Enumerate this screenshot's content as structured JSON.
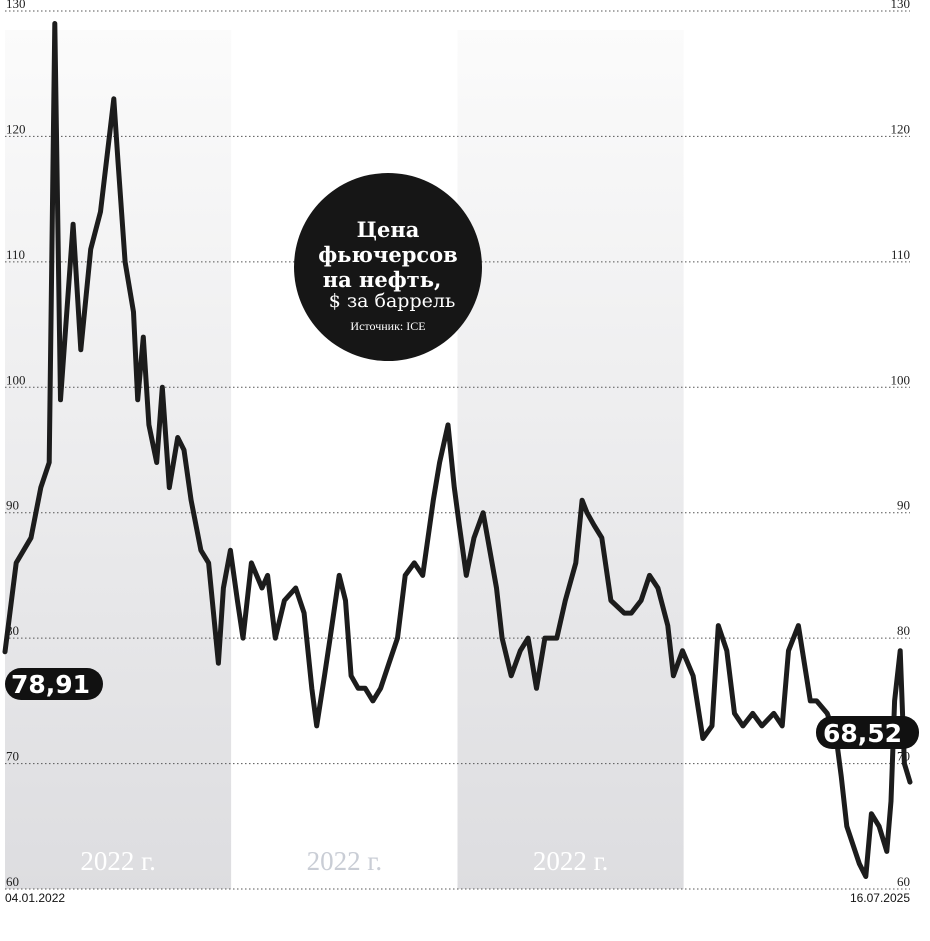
{
  "chart_data": {
    "type": "line",
    "title_lines": [
      "Цена",
      "фьючерсов",
      "на нефть,"
    ],
    "subtitle": "$ за баррель",
    "source": "Источник: ICE",
    "ylim": [
      60,
      130
    ],
    "yticks": [
      "60",
      "70",
      "80",
      "90",
      "100",
      "110",
      "120",
      "130"
    ],
    "y_grid": "dotted",
    "start_date": "04.01.2022",
    "end_date": "16.07.2025",
    "bands": [
      {
        "label": "2022 г.",
        "shaded": true
      },
      {
        "label": "2022 г.",
        "shaded": false
      },
      {
        "label": "2022 г.",
        "shaded": true
      },
      {
        "label": "",
        "shaded": false
      }
    ],
    "first_value_label": "78,91",
    "last_value_label": "68,52",
    "colors": {
      "line": "#1c1c1c",
      "band_top": "#fbfbfb",
      "band_bottom": "#dddde0",
      "grid": "#555555",
      "badge": "#111111"
    },
    "x": [
      "2022-01-04",
      "2022-01-20",
      "2022-02-10",
      "2022-02-24",
      "2022-03-08",
      "2022-03-16",
      "2022-03-24",
      "2022-04-11",
      "2022-04-22",
      "2022-05-06",
      "2022-05-20",
      "2022-06-08",
      "2022-06-14",
      "2022-06-24",
      "2022-07-06",
      "2022-07-12",
      "2022-07-20",
      "2022-07-28",
      "2022-08-08",
      "2022-08-16",
      "2022-08-26",
      "2022-09-07",
      "2022-09-16",
      "2022-09-26",
      "2022-10-10",
      "2022-10-21",
      "2022-11-04",
      "2022-11-11",
      "2022-11-21",
      "2022-12-01",
      "2022-12-09",
      "2022-12-21",
      "2023-01-05",
      "2023-01-13",
      "2023-01-24",
      "2023-02-06",
      "2023-02-22",
      "2023-03-06",
      "2023-03-17",
      "2023-03-24",
      "2023-04-04",
      "2023-04-12",
      "2023-04-25",
      "2023-05-04",
      "2023-05-12",
      "2023-05-22",
      "2023-06-01",
      "2023-06-12",
      "2023-06-23",
      "2023-07-05",
      "2023-07-17",
      "2023-07-28",
      "2023-08-10",
      "2023-08-22",
      "2023-09-06",
      "2023-09-15",
      "2023-09-27",
      "2023-10-06",
      "2023-10-13",
      "2023-10-23",
      "2023-11-03",
      "2023-11-16",
      "2023-12-05",
      "2023-12-13",
      "2023-12-26",
      "2024-01-08",
      "2024-01-19",
      "2024-01-31",
      "2024-02-12",
      "2024-02-29",
      "2024-03-12",
      "2024-03-27",
      "2024-04-05",
      "2024-04-12",
      "2024-04-22",
      "2024-05-03",
      "2024-05-16",
      "2024-06-04",
      "2024-06-14",
      "2024-06-28",
      "2024-07-10",
      "2024-07-22",
      "2024-08-05",
      "2024-08-13",
      "2024-08-26",
      "2024-09-10",
      "2024-09-24",
      "2024-10-07",
      "2024-10-16",
      "2024-10-28",
      "2024-11-08",
      "2024-11-20",
      "2024-12-04",
      "2024-12-17",
      "2025-01-03",
      "2025-01-15",
      "2025-01-24",
      "2025-02-07",
      "2025-02-24",
      "2025-03-05",
      "2025-03-20",
      "2025-04-02",
      "2025-04-09",
      "2025-04-17",
      "2025-05-05",
      "2025-05-14",
      "2025-05-22",
      "2025-06-02",
      "2025-06-13",
      "2025-06-19",
      "2025-06-24",
      "2025-07-02",
      "2025-07-08",
      "2025-07-16"
    ],
    "series": [
      {
        "values": [
          78.91,
          86,
          88,
          92,
          94,
          129,
          99,
          113,
          103,
          111,
          114,
          123,
          118,
          110,
          106,
          99,
          104,
          97,
          94,
          100,
          92,
          96,
          95,
          91,
          87,
          86,
          78,
          84,
          87,
          83,
          80,
          86,
          84,
          85,
          80,
          83,
          84,
          82,
          76,
          73,
          77,
          80,
          85,
          83,
          77,
          76,
          76,
          75,
          76,
          78,
          80,
          85,
          86,
          85,
          91,
          94,
          97,
          92,
          89,
          85,
          88,
          90,
          84,
          80,
          77,
          79,
          80,
          76,
          80,
          80,
          83,
          86,
          91,
          90,
          89,
          88,
          83,
          82,
          82,
          83,
          85,
          84,
          81,
          77,
          79,
          77,
          72,
          73,
          81,
          79,
          74,
          73,
          74,
          73,
          74,
          73,
          79,
          81,
          75,
          75,
          74,
          72,
          69,
          65,
          62,
          61,
          66,
          65,
          63,
          67,
          75,
          79,
          70,
          68.52
        ]
      }
    ]
  }
}
